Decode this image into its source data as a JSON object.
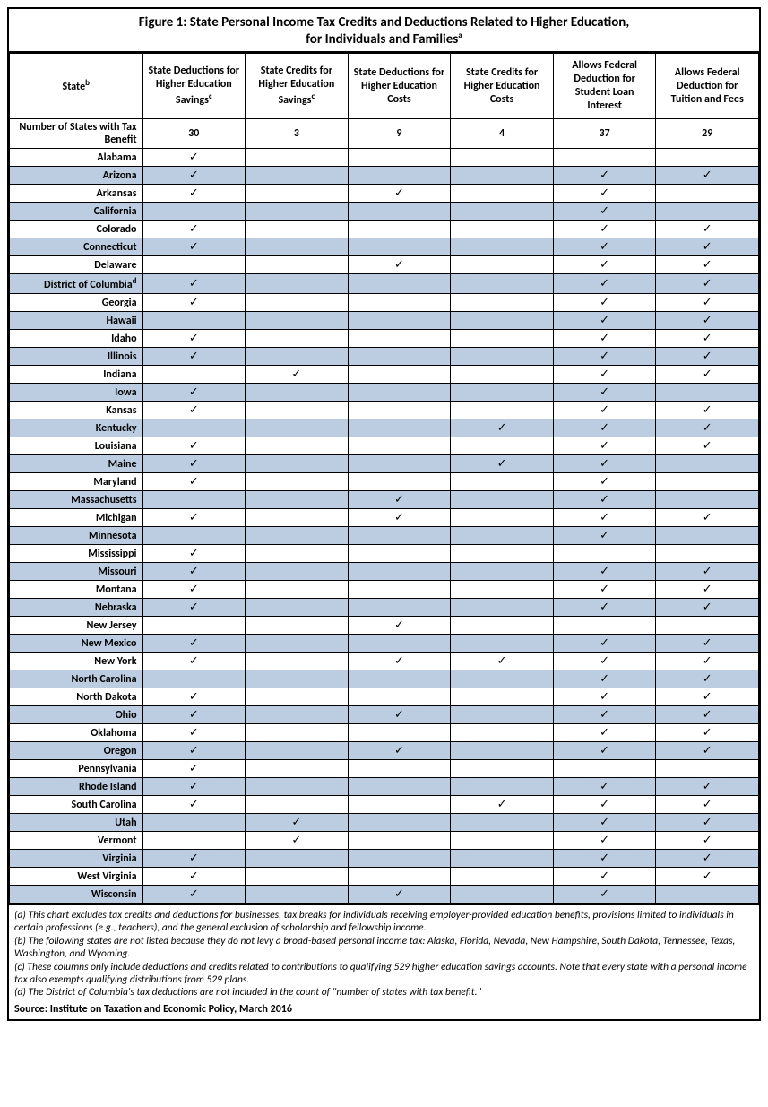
{
  "title_line1": "Figure 1: State Personal Income Tax Credits and Deductions Related to Higher Education,",
  "title_line2": "for Individuals and Families",
  "title_sup": "a",
  "columns": {
    "state": "State",
    "state_sup": "b",
    "c1": "State Deductions for Higher Education Savings",
    "c1_sup": "c",
    "c2": "State Credits for Higher Education Savings",
    "c2_sup": "c",
    "c3": "State Deductions for Higher Education Costs",
    "c4": "State Credits for Higher Education Costs",
    "c5": "Allows Federal Deduction for Student Loan Interest",
    "c6": "Allows Federal Deduction for Tuition and Fees"
  },
  "summary_label": "Number of States with Tax Benefit",
  "summary": [
    "30",
    "3",
    "9",
    "4",
    "37",
    "29"
  ],
  "check_glyph": "✓",
  "rows": [
    {
      "state": "Alabama",
      "marks": [
        1,
        0,
        0,
        0,
        0,
        0
      ]
    },
    {
      "state": "Arizona",
      "marks": [
        1,
        0,
        0,
        0,
        1,
        1
      ]
    },
    {
      "state": "Arkansas",
      "marks": [
        1,
        0,
        1,
        0,
        1,
        0
      ]
    },
    {
      "state": "California",
      "marks": [
        0,
        0,
        0,
        0,
        1,
        0
      ]
    },
    {
      "state": "Colorado",
      "marks": [
        1,
        0,
        0,
        0,
        1,
        1
      ]
    },
    {
      "state": "Connecticut",
      "marks": [
        1,
        0,
        0,
        0,
        1,
        1
      ]
    },
    {
      "state": "Delaware",
      "marks": [
        0,
        0,
        1,
        0,
        1,
        1
      ]
    },
    {
      "state": "District of Columbia",
      "sup": "d",
      "marks": [
        1,
        0,
        0,
        0,
        1,
        1
      ]
    },
    {
      "state": "Georgia",
      "marks": [
        1,
        0,
        0,
        0,
        1,
        1
      ]
    },
    {
      "state": "Hawaii",
      "marks": [
        0,
        0,
        0,
        0,
        1,
        1
      ]
    },
    {
      "state": "Idaho",
      "marks": [
        1,
        0,
        0,
        0,
        1,
        1
      ]
    },
    {
      "state": "Illinois",
      "marks": [
        1,
        0,
        0,
        0,
        1,
        1
      ]
    },
    {
      "state": "Indiana",
      "marks": [
        0,
        1,
        0,
        0,
        1,
        1
      ]
    },
    {
      "state": "Iowa",
      "marks": [
        1,
        0,
        0,
        0,
        1,
        0
      ]
    },
    {
      "state": "Kansas",
      "marks": [
        1,
        0,
        0,
        0,
        1,
        1
      ]
    },
    {
      "state": "Kentucky",
      "marks": [
        0,
        0,
        0,
        1,
        1,
        1
      ]
    },
    {
      "state": "Louisiana",
      "marks": [
        1,
        0,
        0,
        0,
        1,
        1
      ]
    },
    {
      "state": "Maine",
      "marks": [
        1,
        0,
        0,
        1,
        1,
        0
      ]
    },
    {
      "state": "Maryland",
      "marks": [
        1,
        0,
        0,
        0,
        1,
        0
      ]
    },
    {
      "state": "Massachusetts",
      "marks": [
        0,
        0,
        1,
        0,
        1,
        0
      ]
    },
    {
      "state": "Michigan",
      "marks": [
        1,
        0,
        1,
        0,
        1,
        1
      ]
    },
    {
      "state": "Minnesota",
      "marks": [
        0,
        0,
        0,
        0,
        1,
        0
      ]
    },
    {
      "state": "Mississippi",
      "marks": [
        1,
        0,
        0,
        0,
        0,
        0
      ]
    },
    {
      "state": "Missouri",
      "marks": [
        1,
        0,
        0,
        0,
        1,
        1
      ]
    },
    {
      "state": "Montana",
      "marks": [
        1,
        0,
        0,
        0,
        1,
        1
      ]
    },
    {
      "state": "Nebraska",
      "marks": [
        1,
        0,
        0,
        0,
        1,
        1
      ]
    },
    {
      "state": "New Jersey",
      "marks": [
        0,
        0,
        1,
        0,
        0,
        0
      ]
    },
    {
      "state": "New Mexico",
      "marks": [
        1,
        0,
        0,
        0,
        1,
        1
      ]
    },
    {
      "state": "New York",
      "marks": [
        1,
        0,
        1,
        1,
        1,
        1
      ]
    },
    {
      "state": "North Carolina",
      "marks": [
        0,
        0,
        0,
        0,
        1,
        1
      ]
    },
    {
      "state": "North Dakota",
      "marks": [
        1,
        0,
        0,
        0,
        1,
        1
      ]
    },
    {
      "state": "Ohio",
      "marks": [
        1,
        0,
        1,
        0,
        1,
        1
      ]
    },
    {
      "state": "Oklahoma",
      "marks": [
        1,
        0,
        0,
        0,
        1,
        1
      ]
    },
    {
      "state": "Oregon",
      "marks": [
        1,
        0,
        1,
        0,
        1,
        1
      ]
    },
    {
      "state": "Pennsylvania",
      "marks": [
        1,
        0,
        0,
        0,
        0,
        0
      ]
    },
    {
      "state": "Rhode Island",
      "marks": [
        1,
        0,
        0,
        0,
        1,
        1
      ]
    },
    {
      "state": "South Carolina",
      "marks": [
        1,
        0,
        0,
        1,
        1,
        1
      ]
    },
    {
      "state": "Utah",
      "marks": [
        0,
        1,
        0,
        0,
        1,
        1
      ]
    },
    {
      "state": "Vermont",
      "marks": [
        0,
        1,
        0,
        0,
        1,
        1
      ]
    },
    {
      "state": "Virginia",
      "marks": [
        1,
        0,
        0,
        0,
        1,
        1
      ]
    },
    {
      "state": "West Virginia",
      "marks": [
        1,
        0,
        0,
        0,
        1,
        1
      ]
    },
    {
      "state": "Wisconsin",
      "marks": [
        1,
        0,
        1,
        0,
        1,
        0
      ]
    }
  ],
  "notes": [
    "(a) This chart excludes tax credits and deductions for businesses, tax breaks for individuals receiving employer-provided education benefits, provisions limited to individuals in certain professions (e.g., teachers), and the general exclusion of scholarship and fellowship income.",
    "(b) The following states are not listed because they do not levy a broad-based personal income tax: Alaska, Florida, Nevada, New Hampshire, South Dakota, Tennessee, Texas, Washington, and Wyoming.",
    "(c) These columns only include deductions and credits related to contributions to qualifying 529 higher education savings accounts.  Note that every state with a personal income tax also exempts qualifying distributions from 529 plans.",
    "(d) The District of Columbia's tax deductions are not included in the count of \"number of states with tax benefit.\""
  ],
  "source": "Source: Institute on Taxation and Economic Policy, March 2016",
  "colors": {
    "shade": "#bccde2",
    "border": "#000000",
    "background": "#ffffff"
  }
}
